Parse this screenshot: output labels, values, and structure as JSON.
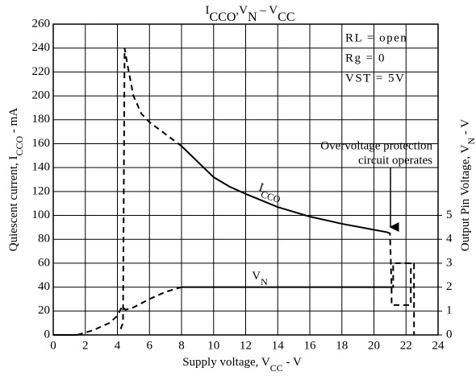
{
  "chart_data": {
    "type": "line",
    "title": [
      {
        "text": "I"
      },
      {
        "text": "CCO",
        "sub": true
      },
      {
        "text": ",V"
      },
      {
        "text": "N",
        "sub": true
      },
      {
        "text": "  –  V"
      },
      {
        "text": "CC",
        "sub": true
      }
    ],
    "x_label": [
      {
        "text": "Supply voltage, V"
      },
      {
        "text": "CC",
        "sub": true
      },
      {
        "text": " - V"
      }
    ],
    "y_label": [
      {
        "text": "Quiescent current, I"
      },
      {
        "text": "CCO",
        "sub": true
      },
      {
        "text": " - mA"
      }
    ],
    "y2_label": [
      {
        "text": "Output Pin Voltage, V"
      },
      {
        "text": "N",
        "sub": true
      },
      {
        "text": " - V"
      }
    ],
    "annotations": [
      "RL = open",
      "Rg = 0",
      "VST = 5V",
      "Overvoltage protection",
      "circuit operates"
    ],
    "xlim": [
      0,
      24
    ],
    "xticks": [
      0,
      2,
      4,
      6,
      8,
      10,
      12,
      14,
      16,
      18,
      20,
      22,
      24
    ],
    "ylim": [
      0,
      260
    ],
    "yticks": [
      0,
      20,
      40,
      60,
      80,
      100,
      120,
      140,
      160,
      180,
      200,
      220,
      240,
      260
    ],
    "y2lim": [
      0,
      13
    ],
    "y2ticks": [
      0,
      1,
      2,
      3,
      4,
      5
    ],
    "grid": true,
    "color": "#000000",
    "series": [
      {
        "name": [
          {
            "text": "I"
          },
          {
            "text": "CCO",
            "sub": true
          }
        ],
        "dash": false,
        "x": [
          8,
          9,
          10,
          11,
          12,
          14,
          16,
          18,
          20,
          20.8
        ],
        "values": [
          158,
          145,
          132,
          124,
          118,
          107,
          99,
          93,
          88,
          86
        ]
      },
      {
        "dash": true,
        "x": [
          4.2,
          4.35,
          4.45,
          4.6,
          5,
          5.5,
          6,
          7,
          8
        ],
        "values": [
          5,
          10,
          240,
          228,
          200,
          185,
          178,
          168,
          158
        ]
      },
      {
        "dash": true,
        "x": [
          20.8,
          21,
          21.1,
          21.1,
          22.3,
          22.3
        ],
        "values": [
          86,
          85,
          40,
          25,
          25,
          60
        ]
      },
      {
        "name": [
          {
            "text": "V"
          },
          {
            "text": "N",
            "sub": true
          }
        ],
        "dash": false,
        "axis": "y2",
        "x": [
          8,
          21
        ],
        "values": [
          2,
          2
        ]
      },
      {
        "dash": false,
        "axis": "y2",
        "x": [
          0,
          1.5
        ],
        "values": [
          0,
          0
        ]
      },
      {
        "dash": true,
        "axis": "y2",
        "x": [
          1.5,
          2.5,
          3.5,
          4,
          4.3,
          4.5,
          5,
          6,
          7,
          8
        ],
        "values": [
          0,
          0.2,
          0.5,
          0.8,
          1.2,
          1.05,
          1.15,
          1.5,
          1.8,
          2
        ]
      },
      {
        "dash": true,
        "axis": "y2",
        "x": [
          21,
          21.2,
          21.2,
          22.5,
          22.5
        ],
        "values": [
          2,
          2,
          3,
          3,
          0
        ]
      }
    ]
  }
}
